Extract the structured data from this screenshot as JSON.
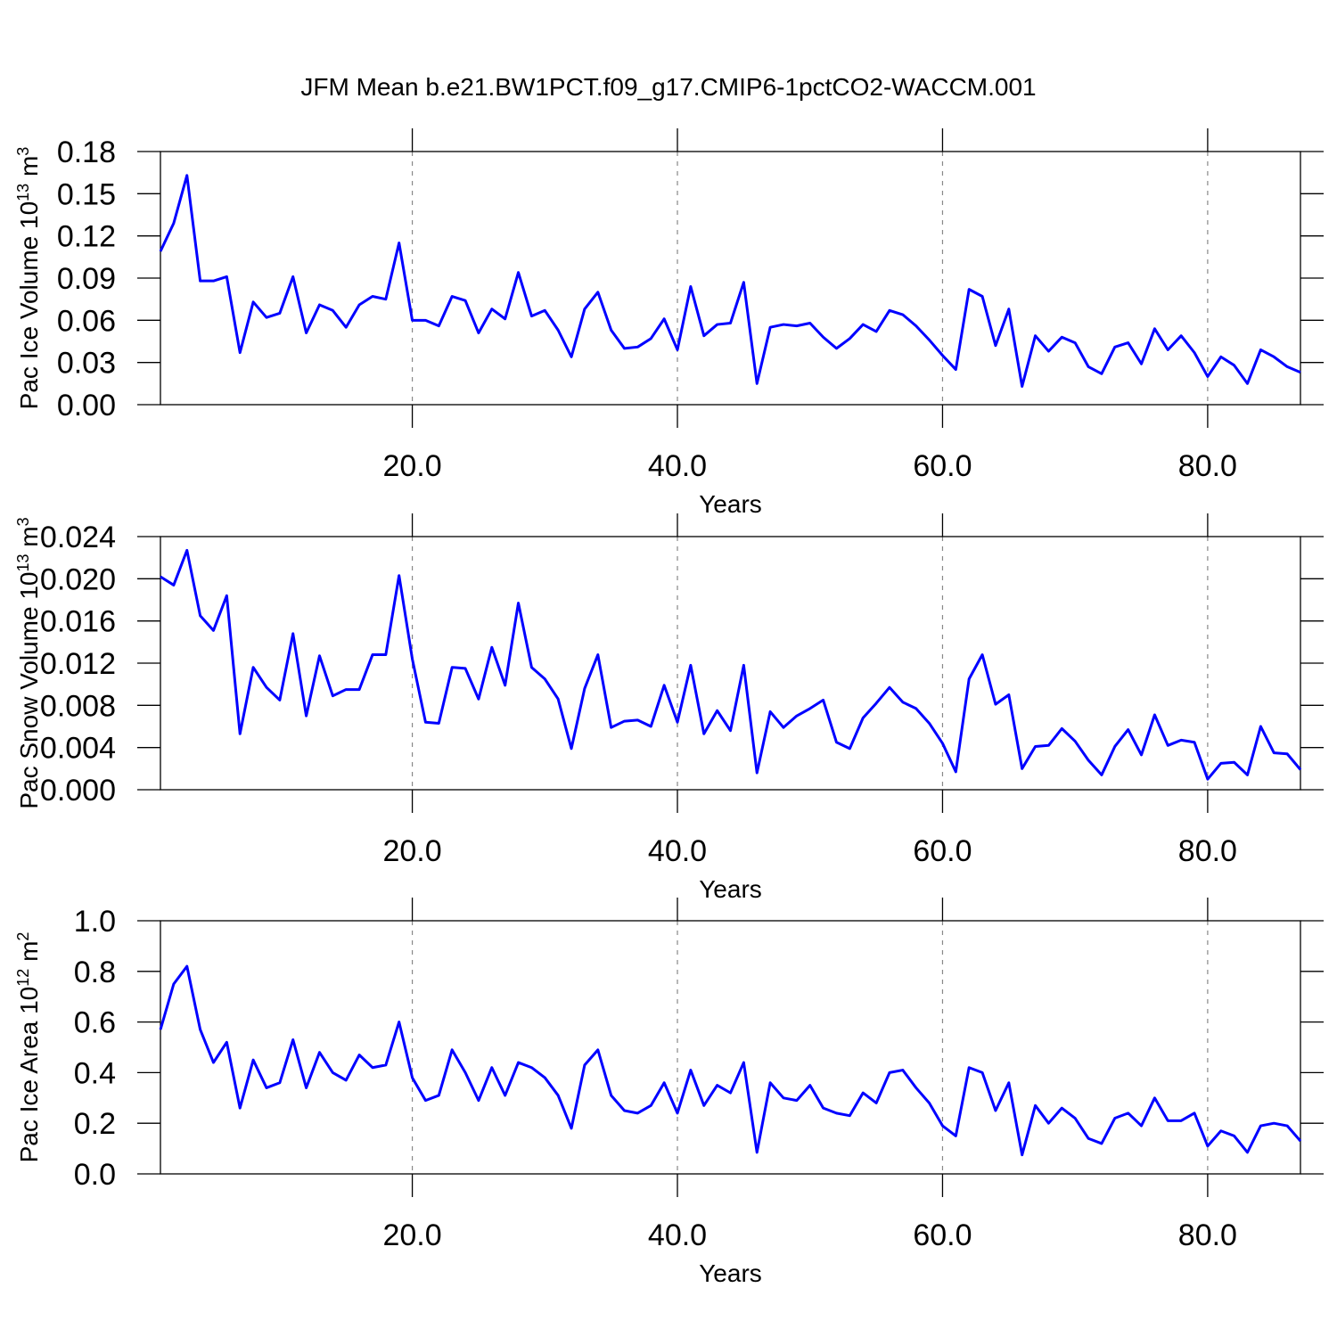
{
  "title": "JFM Mean b.e21.BW1PCT.f09_g17.CMIP6-1pctCO2-WACCM.001",
  "chart_data": [
    {
      "type": "line",
      "xlabel": "Years",
      "ylabel": [
        "Pac Ice Volume 10",
        "13",
        " m",
        "3"
      ],
      "x": [
        1,
        2,
        3,
        4,
        5,
        6,
        7,
        8,
        9,
        10,
        11,
        12,
        13,
        14,
        15,
        16,
        17,
        18,
        19,
        20,
        21,
        22,
        23,
        24,
        25,
        26,
        27,
        28,
        29,
        30,
        31,
        32,
        33,
        34,
        35,
        36,
        37,
        38,
        39,
        40,
        41,
        42,
        43,
        44,
        45,
        46,
        47,
        48,
        49,
        50,
        51,
        52,
        53,
        54,
        55,
        56,
        57,
        58,
        59,
        60,
        61,
        62,
        63,
        64,
        65,
        66,
        67,
        68,
        69,
        70,
        71,
        72,
        73,
        74,
        75,
        76,
        77,
        78,
        79,
        80,
        81,
        82,
        83,
        84,
        85,
        86,
        87
      ],
      "series": [
        {
          "color": "#0000ff",
          "values": [
            0.109,
            0.129,
            0.163,
            0.088,
            0.088,
            0.091,
            0.037,
            0.073,
            0.062,
            0.065,
            0.091,
            0.051,
            0.071,
            0.067,
            0.055,
            0.071,
            0.077,
            0.075,
            0.115,
            0.06,
            0.06,
            0.056,
            0.077,
            0.074,
            0.051,
            0.068,
            0.061,
            0.094,
            0.063,
            0.067,
            0.053,
            0.034,
            0.068,
            0.08,
            0.053,
            0.04,
            0.041,
            0.047,
            0.061,
            0.039,
            0.084,
            0.049,
            0.057,
            0.058,
            0.087,
            0.015,
            0.055,
            0.057,
            0.056,
            0.058,
            0.048,
            0.04,
            0.047,
            0.057,
            0.052,
            0.067,
            0.064,
            0.056,
            0.046,
            0.035,
            0.025,
            0.082,
            0.077,
            0.042,
            0.068,
            0.013,
            0.049,
            0.038,
            0.048,
            0.044,
            0.027,
            0.022,
            0.041,
            0.044,
            0.029,
            0.054,
            0.039,
            0.049,
            0.037,
            0.02,
            0.034,
            0.028,
            0.015,
            0.039,
            0.034,
            0.027,
            0.023
          ]
        }
      ],
      "xlim": [
        1,
        87
      ],
      "ylim": [
        0,
        0.18
      ],
      "xticks": [
        {
          "value": 20,
          "label": "20.0"
        },
        {
          "value": 40,
          "label": "40.0"
        },
        {
          "value": 60,
          "label": "60.0"
        },
        {
          "value": 80,
          "label": "80.0"
        }
      ],
      "yticks": [
        {
          "value": 0,
          "label": "0.00"
        },
        {
          "value": 0.03,
          "label": "0.03"
        },
        {
          "value": 0.06,
          "label": "0.06"
        },
        {
          "value": 0.09,
          "label": "0.09"
        },
        {
          "value": 0.12,
          "label": "0.12"
        },
        {
          "value": 0.15,
          "label": "0.15"
        },
        {
          "value": 0.18,
          "label": "0.18"
        }
      ],
      "grid": true
    },
    {
      "type": "line",
      "xlabel": "Years",
      "ylabel": [
        "Pac Snow Volume 10",
        "13",
        " m",
        "3"
      ],
      "x": [
        1,
        2,
        3,
        4,
        5,
        6,
        7,
        8,
        9,
        10,
        11,
        12,
        13,
        14,
        15,
        16,
        17,
        18,
        19,
        20,
        21,
        22,
        23,
        24,
        25,
        26,
        27,
        28,
        29,
        30,
        31,
        32,
        33,
        34,
        35,
        36,
        37,
        38,
        39,
        40,
        41,
        42,
        43,
        44,
        45,
        46,
        47,
        48,
        49,
        50,
        51,
        52,
        53,
        54,
        55,
        56,
        57,
        58,
        59,
        60,
        61,
        62,
        63,
        64,
        65,
        66,
        67,
        68,
        69,
        70,
        71,
        72,
        73,
        74,
        75,
        76,
        77,
        78,
        79,
        80,
        81,
        82,
        83,
        84,
        85,
        86,
        87
      ],
      "series": [
        {
          "color": "#0000ff",
          "values": [
            0.0202,
            0.0194,
            0.0227,
            0.0165,
            0.0151,
            0.0184,
            0.0053,
            0.0116,
            0.0097,
            0.0085,
            0.0148,
            0.007,
            0.0127,
            0.0089,
            0.0095,
            0.0095,
            0.0128,
            0.0128,
            0.0203,
            0.0124,
            0.0064,
            0.0063,
            0.0116,
            0.0115,
            0.0086,
            0.0135,
            0.0099,
            0.0177,
            0.0116,
            0.0105,
            0.0086,
            0.0039,
            0.0096,
            0.0128,
            0.0059,
            0.0065,
            0.0066,
            0.006,
            0.0099,
            0.0064,
            0.0118,
            0.0053,
            0.0075,
            0.0056,
            0.0118,
            0.0016,
            0.0074,
            0.0059,
            0.007,
            0.0077,
            0.0085,
            0.0045,
            0.0039,
            0.0068,
            0.0082,
            0.0097,
            0.0083,
            0.0077,
            0.0063,
            0.0044,
            0.0017,
            0.0105,
            0.0128,
            0.0081,
            0.009,
            0.002,
            0.0041,
            0.0042,
            0.0058,
            0.0046,
            0.0028,
            0.0014,
            0.0041,
            0.0057,
            0.0033,
            0.0071,
            0.0042,
            0.0047,
            0.0045,
            0.001,
            0.0025,
            0.0026,
            0.0014,
            0.006,
            0.0035,
            0.0034,
            0.0019
          ]
        }
      ],
      "xlim": [
        1,
        87
      ],
      "ylim": [
        0,
        0.024
      ],
      "xticks": [
        {
          "value": 20,
          "label": "20.0"
        },
        {
          "value": 40,
          "label": "40.0"
        },
        {
          "value": 60,
          "label": "60.0"
        },
        {
          "value": 80,
          "label": "80.0"
        }
      ],
      "yticks": [
        {
          "value": 0,
          "label": "0.000"
        },
        {
          "value": 0.004,
          "label": "0.004"
        },
        {
          "value": 0.008,
          "label": "0.008"
        },
        {
          "value": 0.012,
          "label": "0.012"
        },
        {
          "value": 0.016,
          "label": "0.016"
        },
        {
          "value": 0.02,
          "label": "0.020"
        },
        {
          "value": 0.024,
          "label": "0.024"
        }
      ],
      "grid": true
    },
    {
      "type": "line",
      "xlabel": "Years",
      "ylabel": [
        "Pac Ice Area 10",
        "12",
        " m",
        "2"
      ],
      "x": [
        1,
        2,
        3,
        4,
        5,
        6,
        7,
        8,
        9,
        10,
        11,
        12,
        13,
        14,
        15,
        16,
        17,
        18,
        19,
        20,
        21,
        22,
        23,
        24,
        25,
        26,
        27,
        28,
        29,
        30,
        31,
        32,
        33,
        34,
        35,
        36,
        37,
        38,
        39,
        40,
        41,
        42,
        43,
        44,
        45,
        46,
        47,
        48,
        49,
        50,
        51,
        52,
        53,
        54,
        55,
        56,
        57,
        58,
        59,
        60,
        61,
        62,
        63,
        64,
        65,
        66,
        67,
        68,
        69,
        70,
        71,
        72,
        73,
        74,
        75,
        76,
        77,
        78,
        79,
        80,
        81,
        82,
        83,
        84,
        85,
        86,
        87
      ],
      "series": [
        {
          "color": "#0000ff",
          "values": [
            0.57,
            0.75,
            0.82,
            0.57,
            0.44,
            0.52,
            0.26,
            0.45,
            0.34,
            0.36,
            0.53,
            0.34,
            0.48,
            0.4,
            0.37,
            0.47,
            0.42,
            0.43,
            0.6,
            0.38,
            0.29,
            0.31,
            0.49,
            0.4,
            0.29,
            0.42,
            0.31,
            0.44,
            0.42,
            0.38,
            0.31,
            0.18,
            0.43,
            0.49,
            0.31,
            0.25,
            0.24,
            0.27,
            0.36,
            0.24,
            0.41,
            0.27,
            0.35,
            0.32,
            0.44,
            0.085,
            0.36,
            0.3,
            0.29,
            0.35,
            0.26,
            0.24,
            0.23,
            0.32,
            0.28,
            0.4,
            0.41,
            0.34,
            0.28,
            0.19,
            0.15,
            0.42,
            0.4,
            0.25,
            0.36,
            0.075,
            0.27,
            0.2,
            0.26,
            0.22,
            0.14,
            0.12,
            0.22,
            0.24,
            0.19,
            0.3,
            0.21,
            0.21,
            0.24,
            0.11,
            0.17,
            0.15,
            0.085,
            0.19,
            0.2,
            0.19,
            0.13
          ]
        }
      ],
      "xlim": [
        1,
        87
      ],
      "ylim": [
        0,
        1
      ],
      "xticks": [
        {
          "value": 20,
          "label": "20.0"
        },
        {
          "value": 40,
          "label": "40.0"
        },
        {
          "value": 60,
          "label": "60.0"
        },
        {
          "value": 80,
          "label": "80.0"
        }
      ],
      "yticks": [
        {
          "value": 0,
          "label": "0.0"
        },
        {
          "value": 0.2,
          "label": "0.2"
        },
        {
          "value": 0.4,
          "label": "0.4"
        },
        {
          "value": 0.6,
          "label": "0.6"
        },
        {
          "value": 0.8,
          "label": "0.8"
        },
        {
          "value": 1,
          "label": "1.0"
        }
      ],
      "grid": true
    }
  ]
}
